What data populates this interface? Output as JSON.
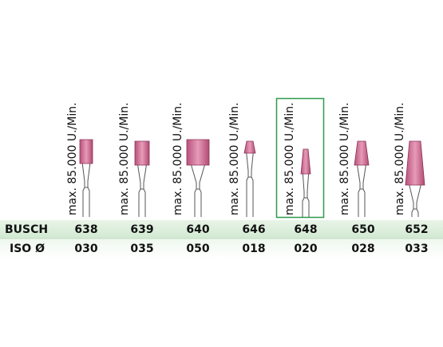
{
  "row_headers": [
    "BUSCH",
    "ISO Ø"
  ],
  "columns": [
    {
      "speed": "max. 85.000 U./Min.",
      "busch": "638",
      "iso": "030"
    },
    {
      "speed": "max. 85.000 U./Min.",
      "busch": "639",
      "iso": "035"
    },
    {
      "speed": "max. 85.000 U./Min.",
      "busch": "640",
      "iso": "050"
    },
    {
      "speed": "max. 85.000 U./Min.",
      "busch": "646",
      "iso": "018"
    },
    {
      "speed": "max. 85.000 U./Min.",
      "busch": "648",
      "iso": "020"
    },
    {
      "speed": "max. 85.000 U./Min.",
      "busch": "650",
      "iso": "028"
    },
    {
      "speed": "max. 85.000 U./Min.",
      "busch": "652",
      "iso": "033"
    }
  ]
}
